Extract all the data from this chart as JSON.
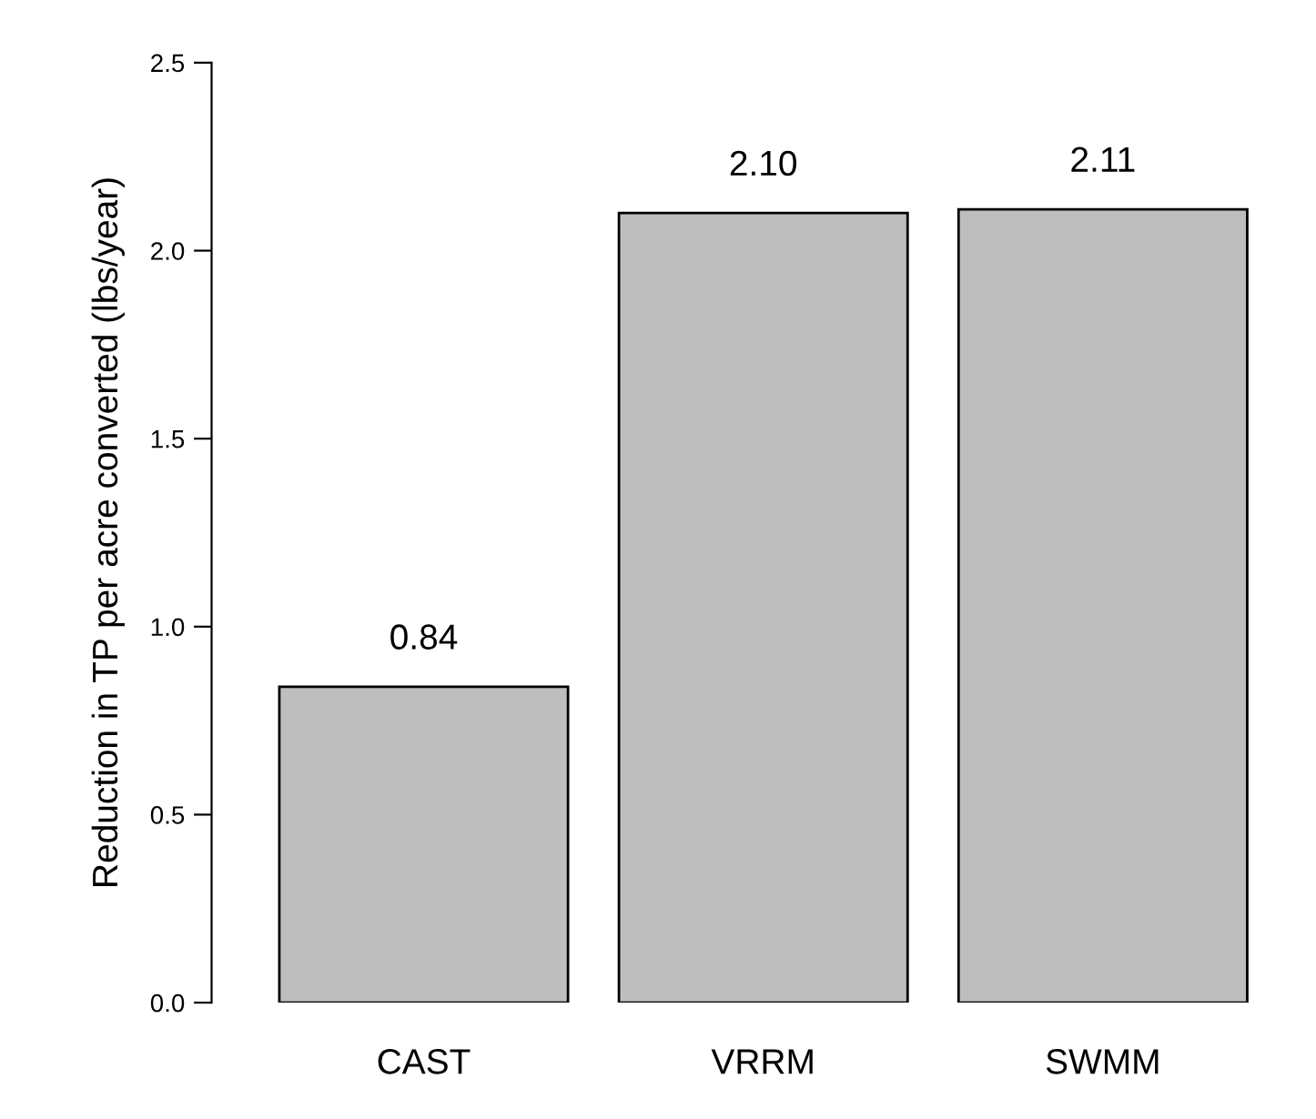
{
  "chart_data": {
    "type": "bar",
    "ylabel": "Reduction in TP per acre converted (lbs/year)",
    "categories": [
      "CAST",
      "VRRM",
      "SWMM"
    ],
    "values": [
      0.84,
      2.1,
      2.11
    ],
    "value_labels": [
      "0.84",
      "2.10",
      "2.11"
    ],
    "color": "#bebebe",
    "ylim": [
      0,
      2.5
    ],
    "yticks": [
      {
        "value": 0,
        "label": "0.0"
      },
      {
        "value": 0.5,
        "label": "0.5"
      },
      {
        "value": 1,
        "label": "1.0"
      },
      {
        "value": 1.5,
        "label": "1.5"
      },
      {
        "value": 2,
        "label": "2.0"
      },
      {
        "value": 2.5,
        "label": "2.5"
      }
    ],
    "grid": false,
    "legend": false
  }
}
